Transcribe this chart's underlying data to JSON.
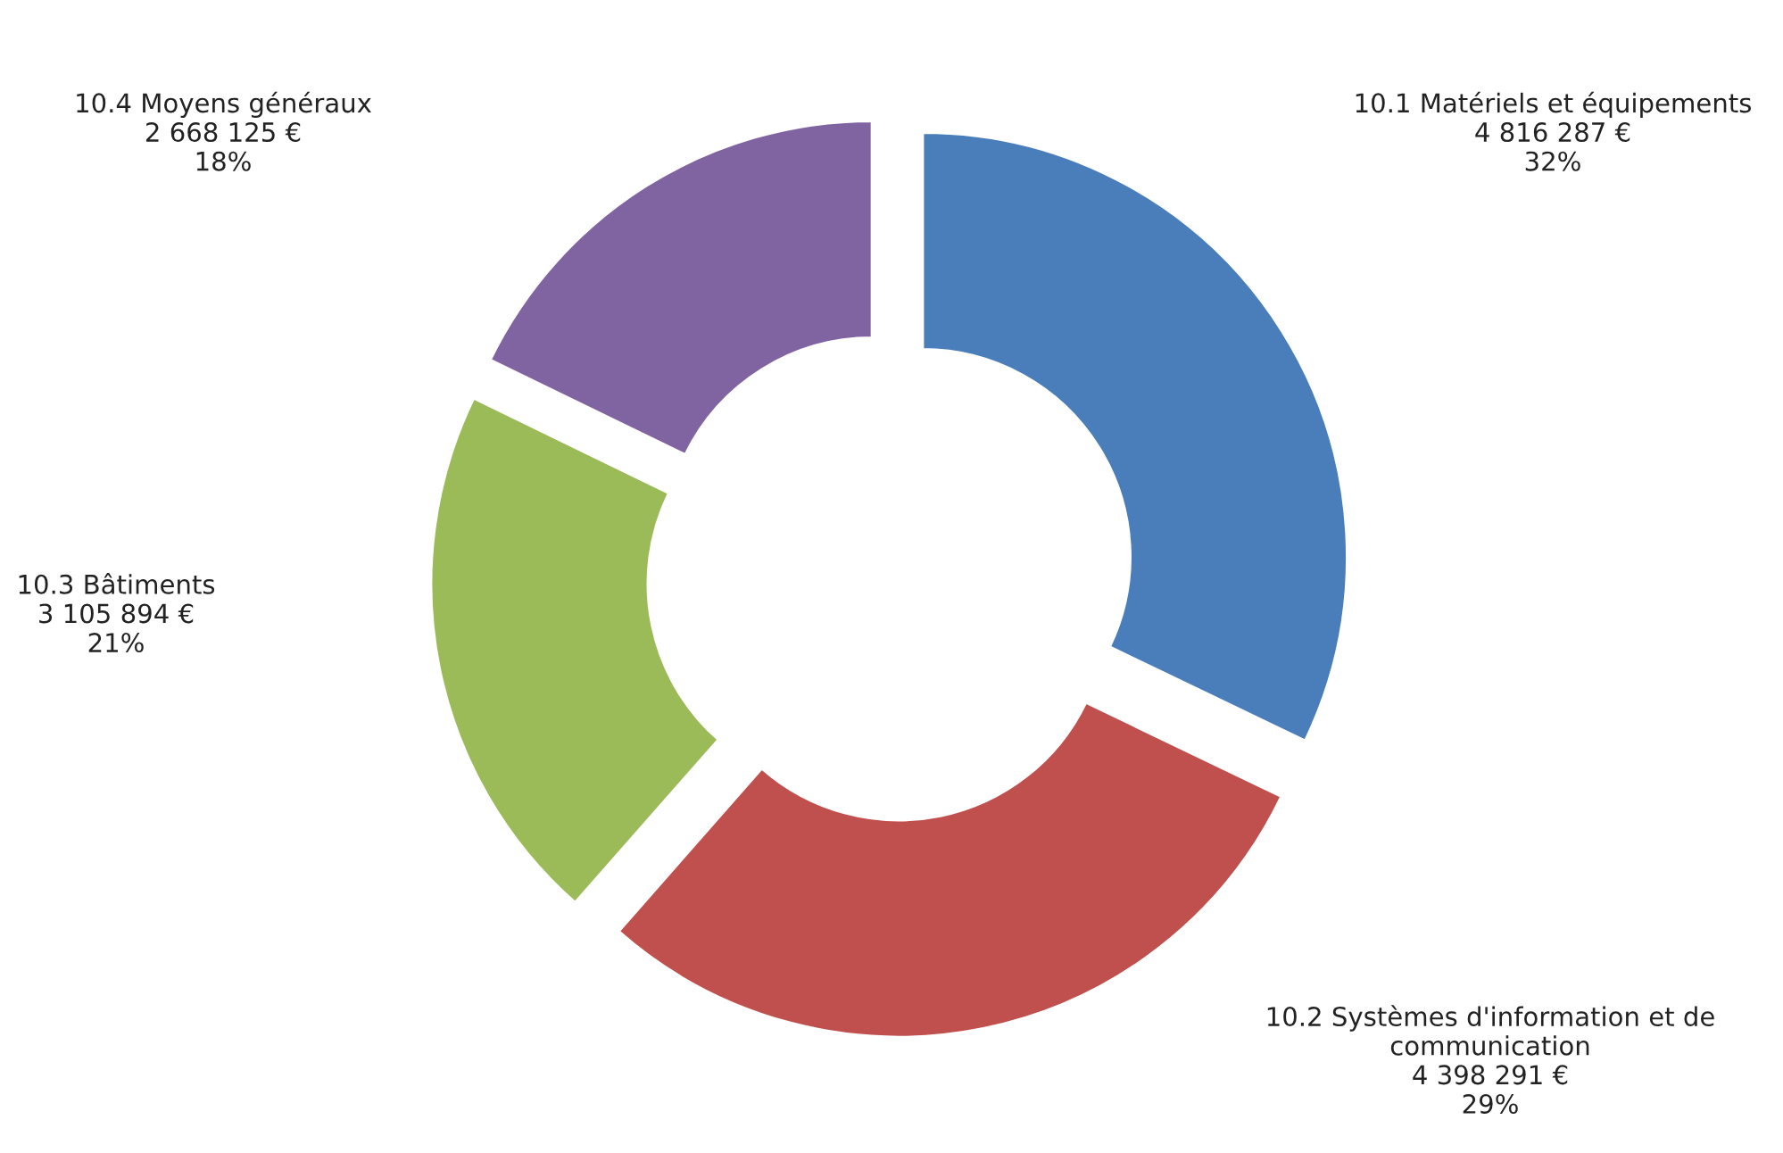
{
  "chart_data": {
    "type": "donut",
    "categories": [
      "10.1 Matériels et équipements",
      "10.2 Systèmes d'information et de communication",
      "10.3 Bâtiments",
      "10.4 Moyens généraux"
    ],
    "values": [
      4816287,
      4398291,
      3105894,
      2668125
    ],
    "colors": [
      "#4a7ebb",
      "#c0504d",
      "#9bbb59",
      "#8064a2"
    ],
    "value_labels": [
      "4 816 287 €\n32%",
      "4 398 291 €\n29%",
      "3 105 894 €\n21%",
      "2 668 125 €\n18%"
    ]
  }
}
